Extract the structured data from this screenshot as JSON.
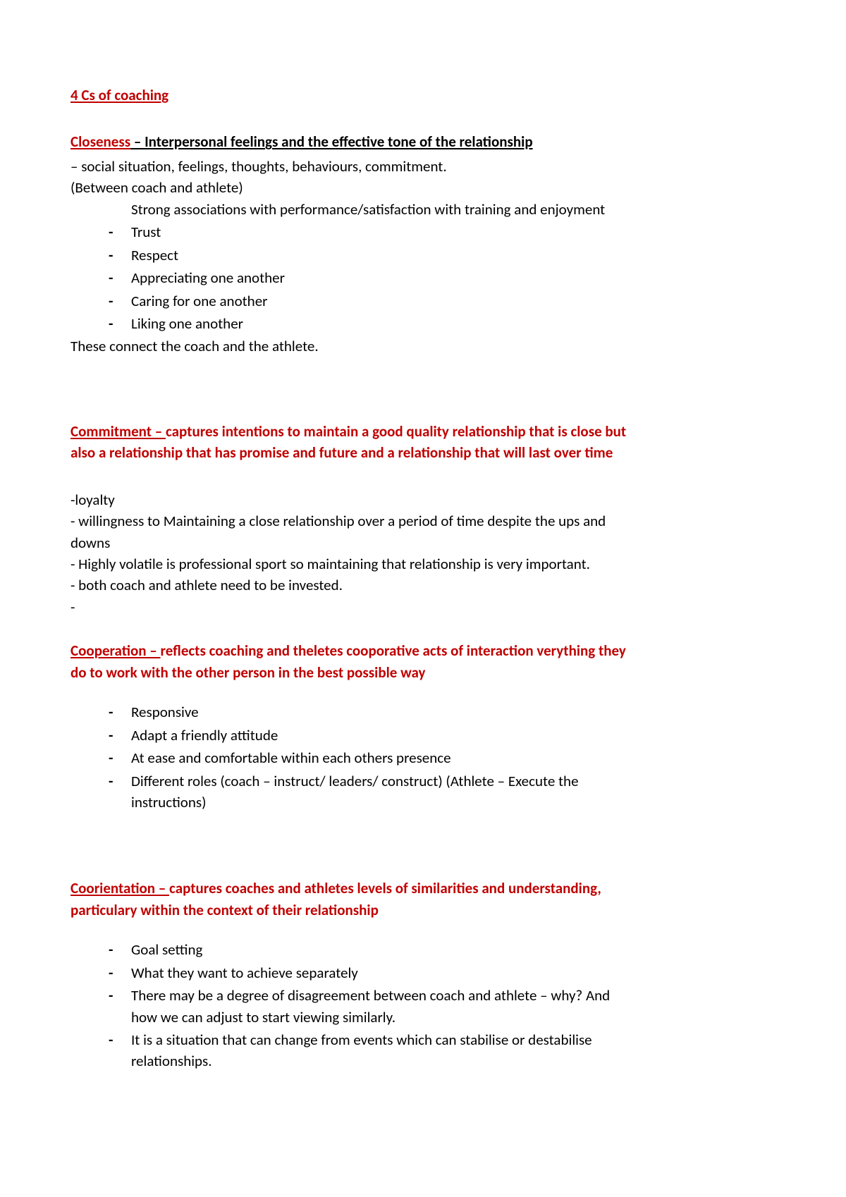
{
  "title": "4 Cs of coaching",
  "closeness": {
    "heading_name": "Closeness",
    "heading_rest": " – Interpersonal feelings and the effective tone of the relationship",
    "line1": "– social situation, feelings, thoughts, behaviours, commitment.",
    "line2": "(Between coach and athlete)",
    "line3": "Strong associations with performance/satisfaction with training and enjoyment",
    "bullets": [
      "Trust",
      "Respect",
      "Appreciating one another",
      "Caring for one another",
      "Liking one another"
    ],
    "footer": "These connect the coach and the athlete."
  },
  "commitment": {
    "heading_name": "Commitment – ",
    "heading_rest": "captures intentions to maintain a good quality relationship that is close but also a relationship that has promise and future and a relationship that will last over time",
    "lines": [
      "-loyalty",
      "- willingness to Maintaining a close relationship over a period of time despite the ups and downs",
      "- Highly volatile is professional sport so maintaining that relationship is very important.",
      "- both coach and athlete need to be invested.",
      "-"
    ]
  },
  "cooperation": {
    "heading_name": "Cooperation – ",
    "heading_rest": "reflects coaching and theletes cooporative acts of interaction verything they do to work with the other person in the best possible way",
    "bullets": [
      "Responsive",
      "Adapt a friendly attitude",
      "At ease and comfortable within each others presence",
      "Different roles (coach – instruct/ leaders/ construct) (Athlete – Execute the instructions)"
    ]
  },
  "coorientation": {
    "heading_name": "Coorientation – ",
    "heading_rest": "captures coaches and athletes levels of similarities and understanding, particulary within the context of their relationship",
    "bullets": [
      "Goal setting",
      "What they want to achieve separately",
      "There may be a degree of disagreement between coach and athlete – why? And how we can adjust to start viewing similarly.",
      "It is a situation that can change from events which can stabilise or destabilise relationships."
    ]
  }
}
